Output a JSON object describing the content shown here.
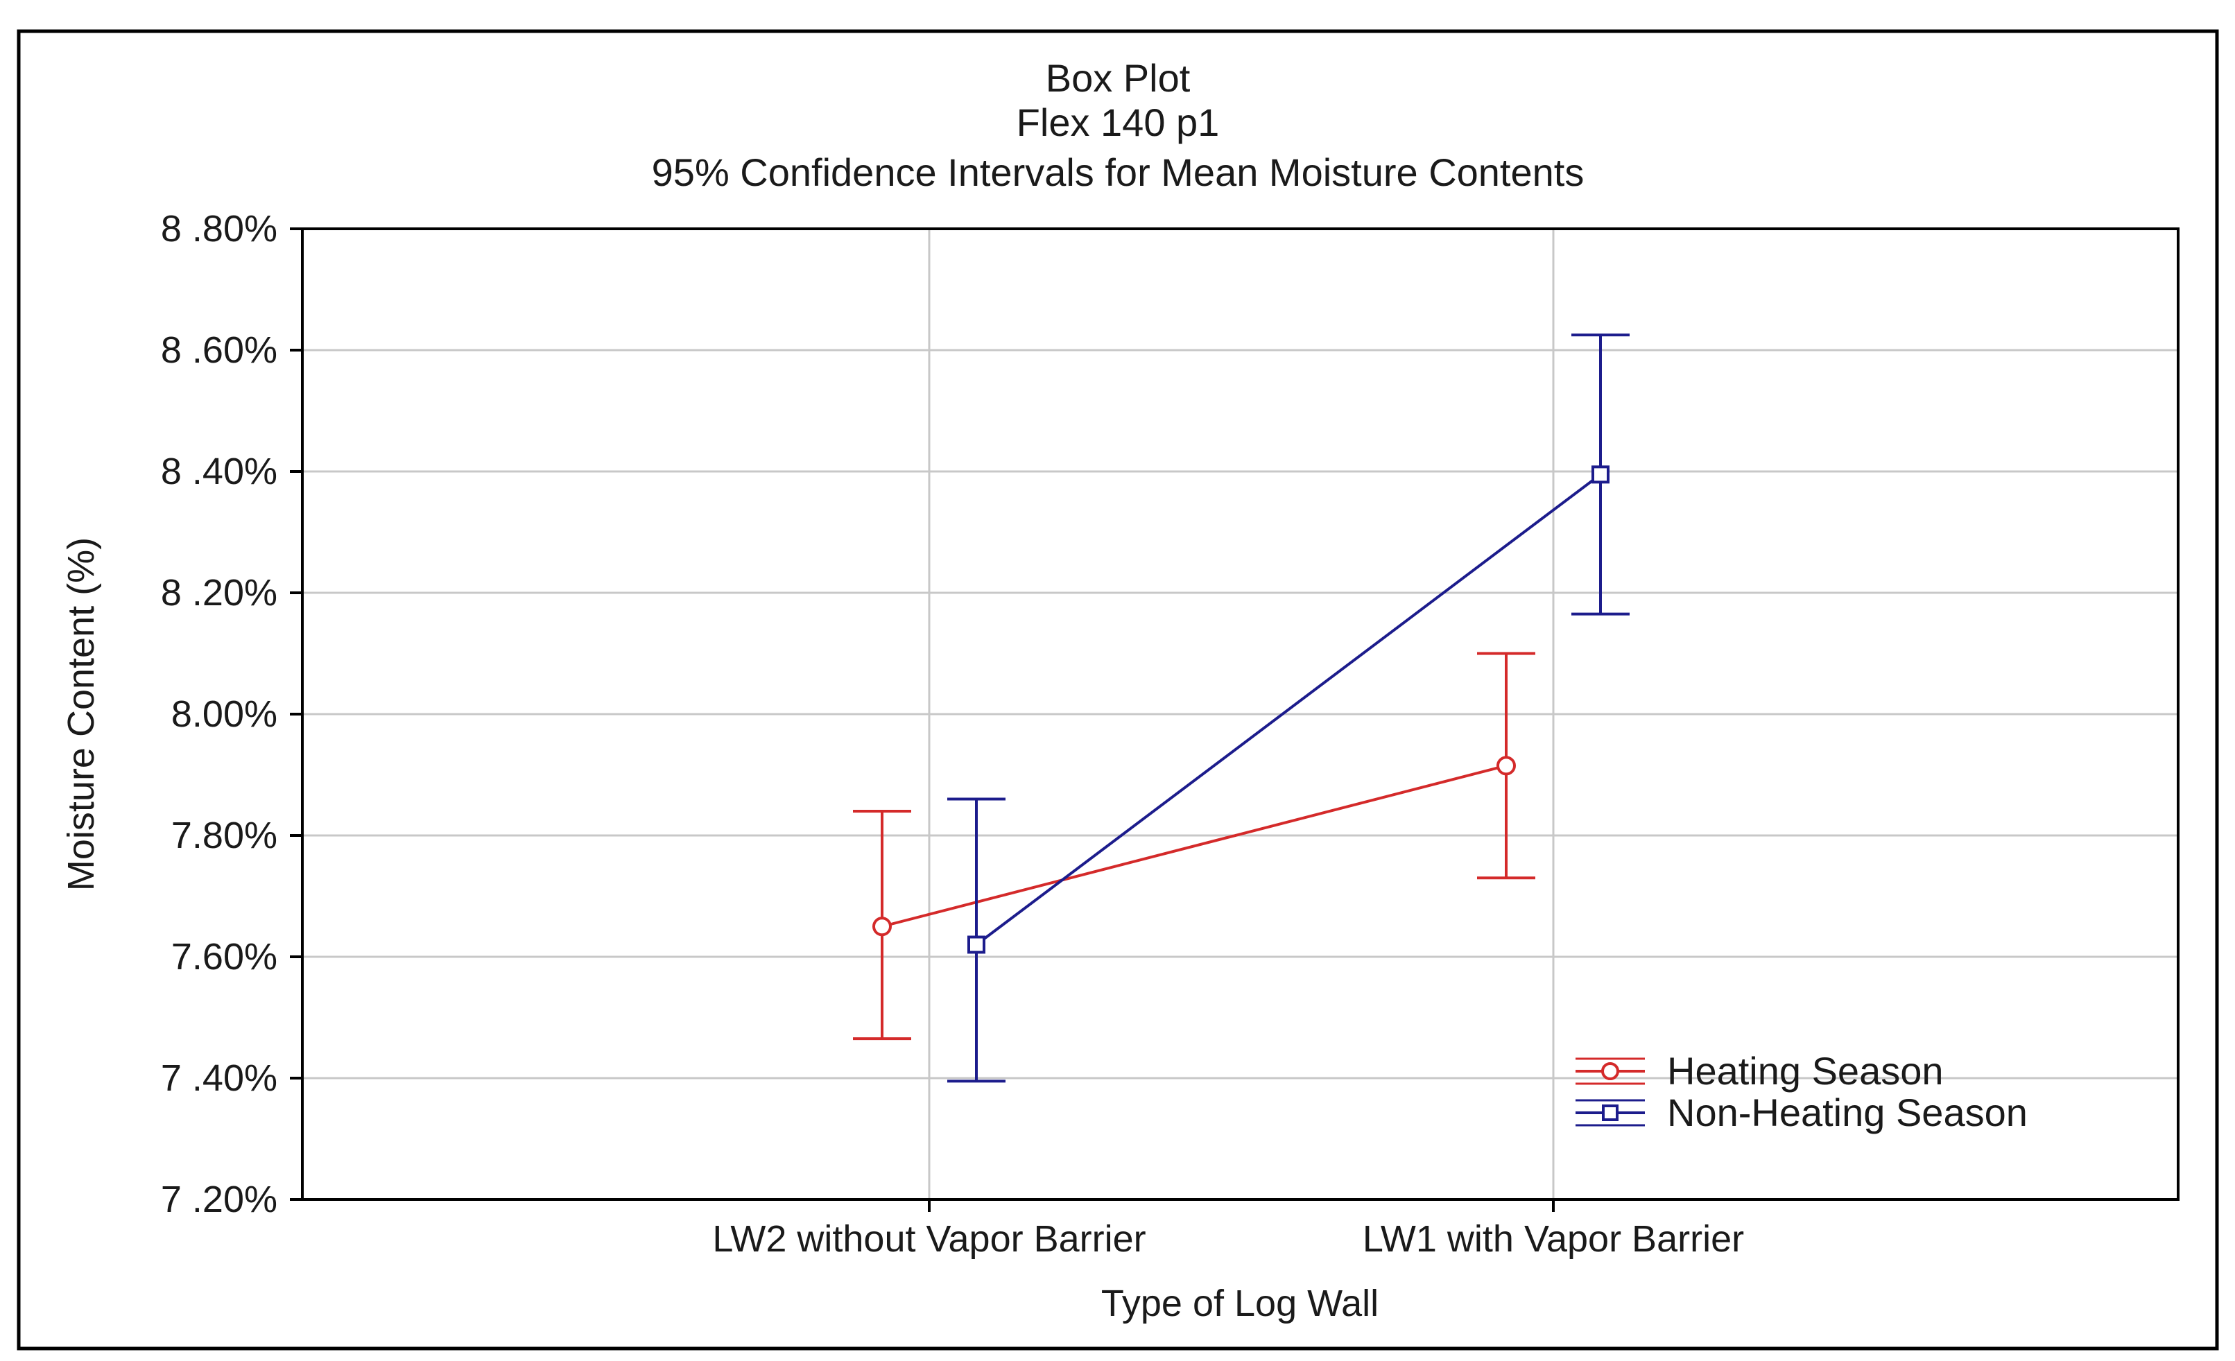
{
  "chart_data": {
    "type": "line",
    "title_lines": [
      "Box Plot",
      "Flex 140 p1",
      "95% Confidence Intervals for Mean Moisture Contents"
    ],
    "xlabel": "Type of Log Wall",
    "ylabel": "Moisture Content (%)",
    "categories": [
      "LW2 without Vapor Barrier",
      "LW1 with Vapor Barrier"
    ],
    "ylim": [
      7.2,
      8.8
    ],
    "yticks": [
      8.8,
      8.6,
      8.4,
      8.2,
      8.0,
      7.8,
      7.6,
      7.4,
      7.2
    ],
    "ytick_labels": [
      "8 .80%",
      "8 .60%",
      "8 .40%",
      "8 .20%",
      "8.00%",
      "7.80%",
      "7.60%",
      "7 .40%",
      "7 .20%"
    ],
    "grid": true,
    "legend_position": "bottom-right",
    "series": [
      {
        "name": "Heating Season",
        "color": "#d42a2a",
        "marker": "circle",
        "values": [
          7.65,
          7.915
        ],
        "ci_lower": [
          7.465,
          7.73
        ],
        "ci_upper": [
          7.84,
          8.1
        ]
      },
      {
        "name": "Non-Heating Season",
        "color": "#1c1c8c",
        "marker": "square",
        "values": [
          7.62,
          8.395
        ],
        "ci_lower": [
          7.395,
          8.165
        ],
        "ci_upper": [
          7.86,
          8.625
        ]
      }
    ]
  }
}
